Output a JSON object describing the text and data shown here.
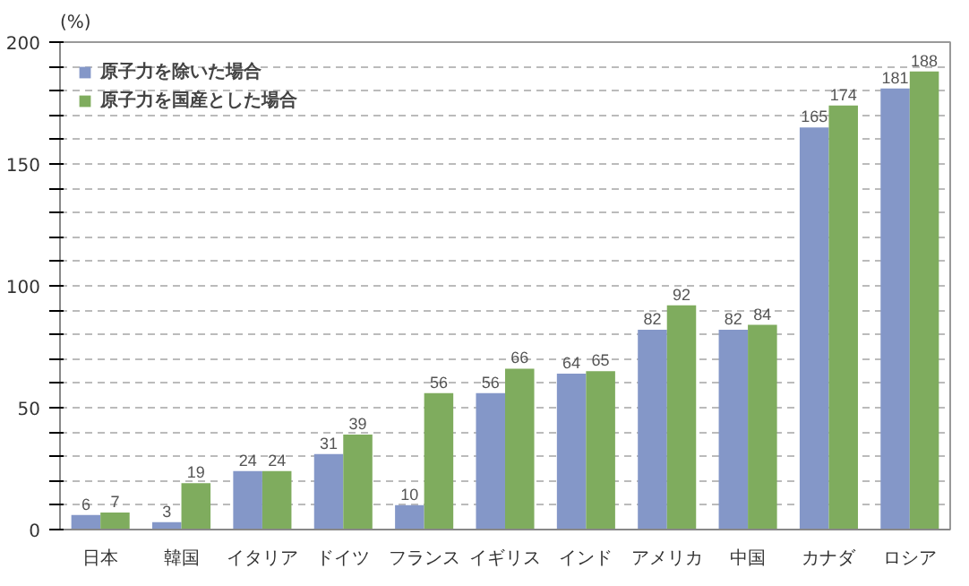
{
  "chart_data": {
    "type": "bar",
    "ylabel": "(%)",
    "categories": [
      "日本",
      "韓国",
      "イタリア",
      "ドイツ",
      "フランス",
      "イギリス",
      "インド",
      "アメリカ",
      "中国",
      "カナダ",
      "ロシア"
    ],
    "series": [
      {
        "name": "原子力を除いた場合",
        "color": "#8497c8",
        "values": [
          6,
          3,
          24,
          31,
          10,
          56,
          64,
          82,
          82,
          165,
          181
        ]
      },
      {
        "name": "原子力を国産とした場合",
        "color": "#7fac5e",
        "values": [
          7,
          19,
          24,
          39,
          56,
          66,
          65,
          92,
          84,
          174,
          188
        ]
      }
    ],
    "ylim": [
      0,
      200
    ],
    "yticks": [
      0,
      {
        "value": 10,
        "label": null
      },
      {
        "value": 20,
        "label": null
      },
      {
        "value": 30,
        "label": null
      },
      {
        "value": 40,
        "label": null
      },
      50,
      {
        "value": 60,
        "label": null
      },
      {
        "value": 70,
        "label": null
      },
      {
        "value": 80,
        "label": null
      },
      {
        "value": 90,
        "label": null
      },
      100,
      {
        "value": 110,
        "label": null
      },
      {
        "value": 120,
        "label": null
      },
      {
        "value": 130,
        "label": null
      },
      {
        "value": 140,
        "label": null
      },
      150,
      {
        "value": 160,
        "label": null
      },
      {
        "value": 170,
        "label": null
      },
      {
        "value": 180,
        "label": null
      },
      {
        "value": 190,
        "label": null
      },
      200
    ],
    "grid": "y",
    "legend": "top left",
    "data_labels": true
  }
}
